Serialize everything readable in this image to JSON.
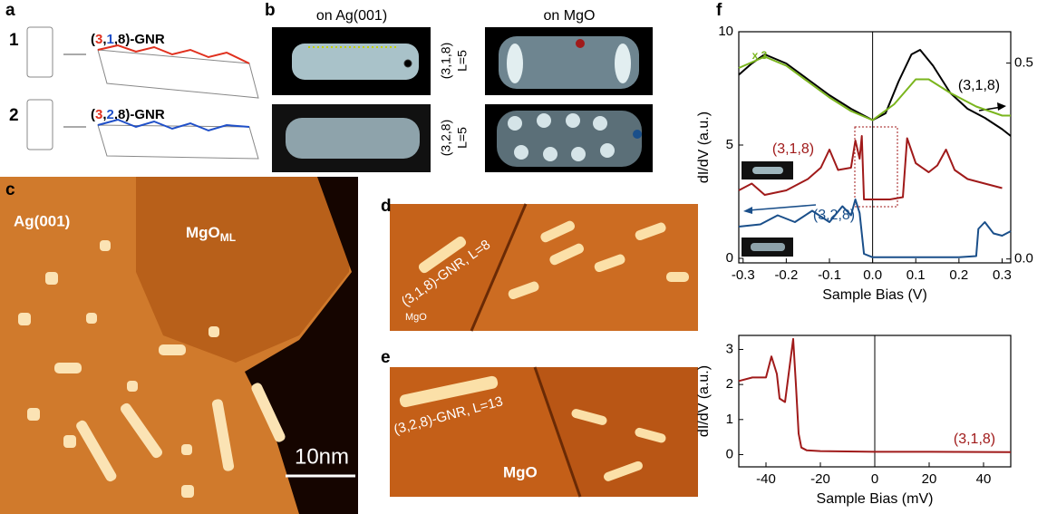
{
  "panels": {
    "a": {
      "label": "a",
      "items": [
        {
          "number": "1",
          "name_parts": [
            "(",
            "3",
            ",",
            "1",
            ",8)-GNR"
          ]
        },
        {
          "number": "2",
          "name_parts": [
            "(",
            "3",
            ",",
            "2",
            ",8)-GNR"
          ]
        }
      ]
    },
    "b": {
      "label": "b",
      "columns": [
        "on Ag(001)",
        "on MgO"
      ],
      "rows": [
        {
          "name": "(3,1,8)",
          "length": "L=5"
        },
        {
          "name": "(3,2,8)",
          "length": "L=5"
        }
      ]
    },
    "c": {
      "label": "c",
      "regions": [
        "Ag(001)"
      ],
      "mgo": {
        "base": "MgO",
        "sub": "ML"
      },
      "scale_bar": "10nm"
    },
    "d": {
      "label": "d",
      "annotation": "(3,1,8)-GNR, L=8",
      "substrate": "MgO"
    },
    "e": {
      "label": "e",
      "annotation": "(3,2,8)-GNR, L=13",
      "substrate": "MgO"
    },
    "f": {
      "label": "f",
      "plots": [
        {
          "type": "line",
          "xlabel": "Sample Bias (V)",
          "ylabel": "dI/dV (a.u.)",
          "xlim": [
            -0.31,
            0.32
          ],
          "ylim": [
            -0.2,
            10
          ],
          "y2lim": [
            -0.01,
            0.58
          ],
          "xticks": [
            -0.3,
            -0.2,
            -0.1,
            {
              "value": 0,
              "label": "0.0"
            },
            0.1,
            0.2,
            0.3
          ],
          "yticks": [
            0,
            5,
            10
          ],
          "y2ticks": [
            {
              "value": 0,
              "label": "0.0"
            },
            0.5
          ],
          "series": [
            {
              "name": "(3,1,8)",
              "color": "#000000",
              "x": [
                -0.31,
                -0.28,
                -0.25,
                -0.2,
                -0.15,
                -0.1,
                -0.05,
                0,
                0.03,
                0.06,
                0.09,
                0.11,
                0.14,
                0.18,
                0.22,
                0.26,
                0.3,
                0.32
              ],
              "values": [
                8.1,
                8.6,
                9.0,
                8.6,
                7.9,
                7.2,
                6.6,
                6.1,
                6.4,
                7.8,
                9.0,
                9.2,
                8.5,
                7.3,
                6.6,
                6.2,
                5.7,
                5.4
              ]
            },
            {
              "name": "x 3",
              "color": "#7ab51d",
              "x": [
                -0.31,
                -0.25,
                -0.2,
                -0.15,
                -0.1,
                -0.05,
                0,
                0.05,
                0.1,
                0.13,
                0.18,
                0.24,
                0.3,
                0.32
              ],
              "values": [
                8.4,
                8.9,
                8.5,
                7.8,
                7.1,
                6.5,
                6.1,
                6.8,
                7.9,
                7.9,
                7.3,
                6.7,
                6.3,
                6.3
              ]
            },
            {
              "name": "(3,1,8)",
              "color": "#a01a1a",
              "x": [
                -0.31,
                -0.28,
                -0.25,
                -0.2,
                -0.15,
                -0.12,
                -0.1,
                -0.08,
                -0.05,
                -0.04,
                -0.03,
                -0.025,
                -0.02,
                0,
                0.04,
                0.07,
                0.08,
                0.1,
                0.13,
                0.15,
                0.17,
                0.19,
                0.22,
                0.26,
                0.3
              ],
              "values": [
                3.0,
                3.3,
                2.8,
                3.0,
                3.5,
                4.0,
                4.8,
                3.9,
                4.0,
                5.2,
                4.4,
                5.4,
                2.6,
                2.6,
                2.6,
                2.7,
                5.3,
                4.2,
                3.8,
                4.1,
                4.8,
                3.9,
                3.5,
                3.3,
                3.1
              ]
            },
            {
              "name": "(3,2,8)",
              "color": "#1a4f8a",
              "x": [
                -0.31,
                -0.26,
                -0.22,
                -0.18,
                -0.14,
                -0.1,
                -0.07,
                -0.05,
                -0.04,
                -0.03,
                -0.02,
                0,
                0.1,
                0.2,
                0.24,
                0.245,
                0.26,
                0.28,
                0.3,
                0.32
              ],
              "values": [
                1.4,
                1.5,
                1.9,
                1.6,
                2.1,
                1.6,
                2.3,
                1.9,
                2.6,
                2.0,
                0.2,
                0.05,
                0.05,
                0.05,
                0.1,
                1.3,
                1.6,
                1.1,
                1.0,
                1.2
              ]
            }
          ]
        },
        {
          "type": "line",
          "xlabel": "Sample Bias (mV)",
          "ylabel": "dI/dV (a.u.)",
          "xlim": [
            -50,
            50
          ],
          "ylim": [
            -0.35,
            3.4
          ],
          "xticks": [
            -40,
            -20,
            0,
            20,
            40
          ],
          "yticks": [
            0,
            1,
            2,
            3
          ],
          "series": [
            {
              "name": "(3,1,8)",
              "color": "#a01a1a",
              "x": [
                -50,
                -45,
                -40,
                -38,
                -36,
                -35,
                -33,
                -31,
                -30,
                -29,
                -28,
                -27,
                -25,
                -20,
                0,
                20,
                50
              ],
              "values": [
                2.1,
                2.2,
                2.2,
                2.8,
                2.3,
                1.6,
                1.5,
                2.7,
                3.3,
                2.0,
                0.6,
                0.2,
                0.12,
                0.1,
                0.08,
                0.08,
                0.07
              ]
            }
          ]
        }
      ]
    }
  }
}
